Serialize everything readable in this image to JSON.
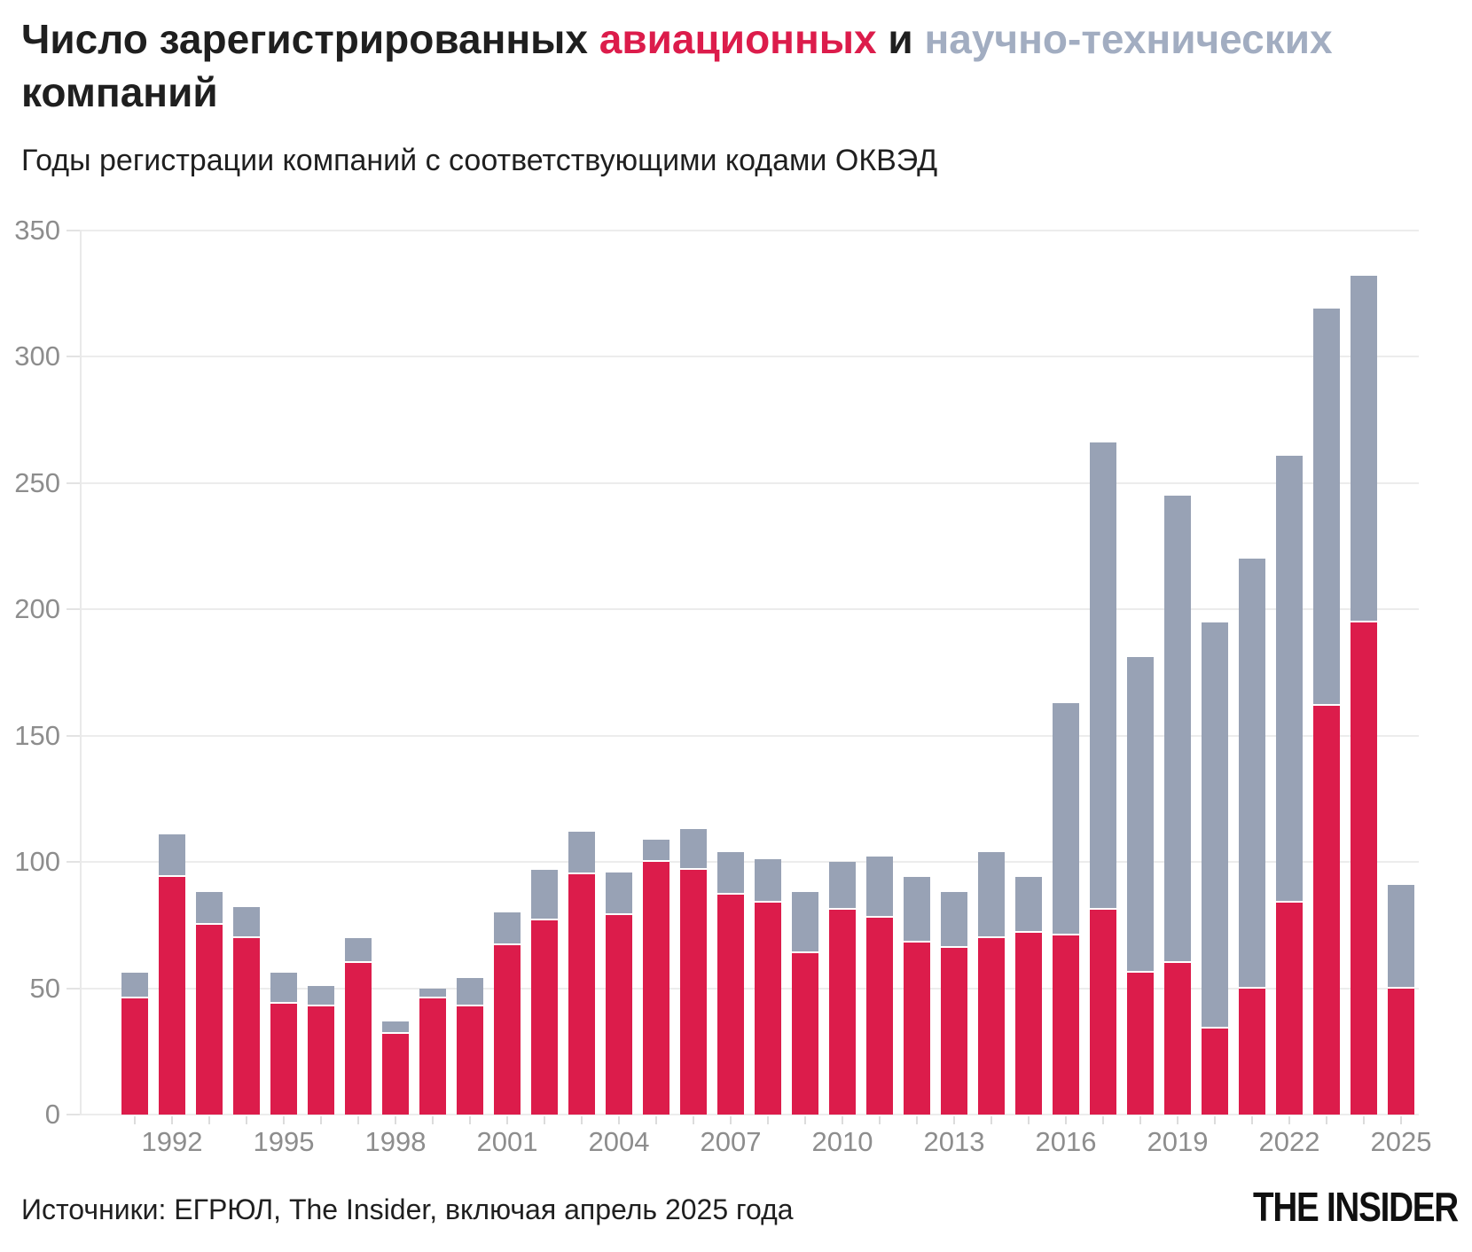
{
  "title": {
    "part1": "Число зарегистрированных",
    "aviation": "авиационных",
    "conjunction": "и",
    "scitech": "научно-технических",
    "part2": "компаний"
  },
  "subtitle": "Годы регистрации компаний с соответствующими кодами ОКВЭД",
  "footer": {
    "source": "Источники: ЕГРЮЛ, The Insider, включая апрель 2025 года",
    "logo": "THE INSIDER"
  },
  "colors": {
    "aviation_red": "#DC1C4B",
    "scitech_gray": "#98A2B5",
    "title_gray_word": "#A2ADC1",
    "gridline": "#ececec",
    "axis_label": "#8d8d8d",
    "text_dark": "#1f1f1f"
  },
  "chart_data": {
    "type": "bar",
    "stacked": true,
    "title": "Число зарегистрированных авиационных и научно-технических компаний",
    "xlabel": "",
    "ylabel": "",
    "grid": true,
    "legend_position": "in-title",
    "ylim": [
      0,
      350
    ],
    "yticks": [
      0,
      50,
      100,
      150,
      200,
      250,
      300,
      350
    ],
    "xticks": [
      1992,
      1995,
      1998,
      2001,
      2004,
      2007,
      2010,
      2013,
      2016,
      2019,
      2022,
      2025
    ],
    "x": [
      1991,
      1992,
      1993,
      1994,
      1995,
      1996,
      1997,
      1998,
      1999,
      2000,
      2001,
      2002,
      2003,
      2004,
      2005,
      2006,
      2007,
      2008,
      2009,
      2010,
      2011,
      2012,
      2013,
      2014,
      2015,
      2016,
      2017,
      2018,
      2019,
      2020,
      2021,
      2022,
      2023,
      2024,
      2025
    ],
    "series": [
      {
        "name": "авиационных",
        "color": "#DC1C4B",
        "values": [
          46,
          94,
          75,
          70,
          44,
          43,
          60,
          32,
          46,
          43,
          67,
          77,
          95,
          79,
          100,
          97,
          87,
          84,
          64,
          81,
          78,
          68,
          66,
          70,
          72,
          71,
          81,
          56,
          60,
          34,
          50,
          84,
          162,
          195,
          50
        ]
      },
      {
        "name": "научно-технических",
        "color": "#98A2B5",
        "values": [
          10,
          17,
          13,
          12,
          12,
          8,
          10,
          5,
          4,
          11,
          13,
          20,
          17,
          17,
          9,
          16,
          17,
          17,
          24,
          19,
          24,
          26,
          22,
          34,
          22,
          92,
          185,
          125,
          185,
          161,
          170,
          177,
          157,
          137,
          41
        ]
      }
    ],
    "totals": [
      56,
      111,
      88,
      82,
      56,
      51,
      70,
      37,
      50,
      54,
      80,
      97,
      112,
      96,
      109,
      113,
      104,
      101,
      88,
      100,
      102,
      94,
      88,
      104,
      94,
      163,
      266,
      181,
      245,
      195,
      220,
      261,
      319,
      332,
      91
    ]
  }
}
